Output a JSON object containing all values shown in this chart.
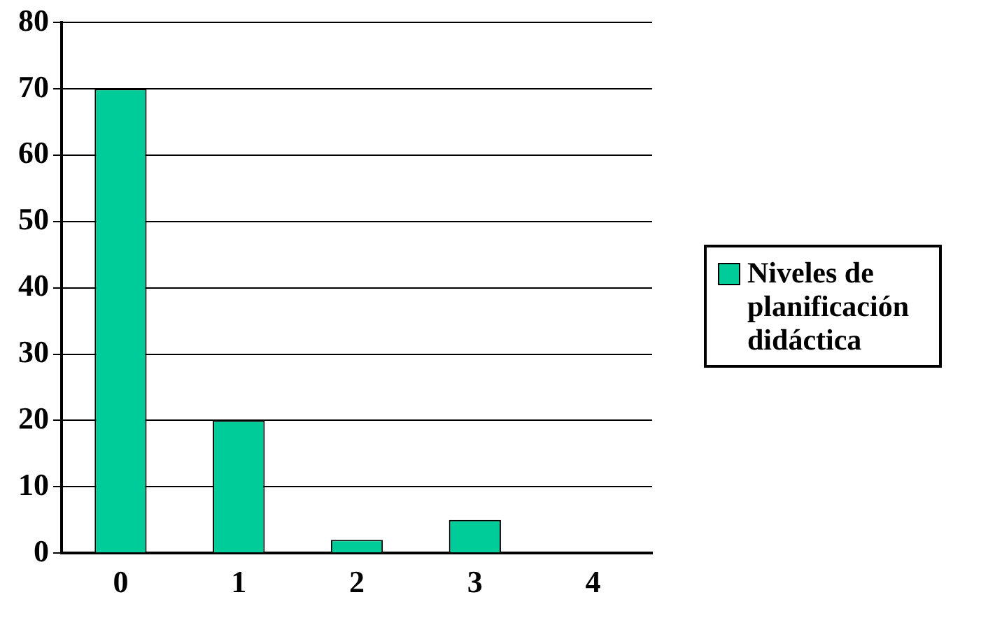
{
  "chart_data": {
    "type": "bar",
    "categories": [
      "0",
      "1",
      "2",
      "3",
      "4"
    ],
    "series": [
      {
        "name": "Niveles de planificación didáctica",
        "color": "#00cc99",
        "values": [
          70,
          20,
          2,
          5,
          0
        ]
      }
    ],
    "ylim": [
      0,
      80
    ],
    "yticks": [
      0,
      10,
      20,
      30,
      40,
      50,
      60,
      70,
      80
    ],
    "grid": "y",
    "legend": "right"
  }
}
